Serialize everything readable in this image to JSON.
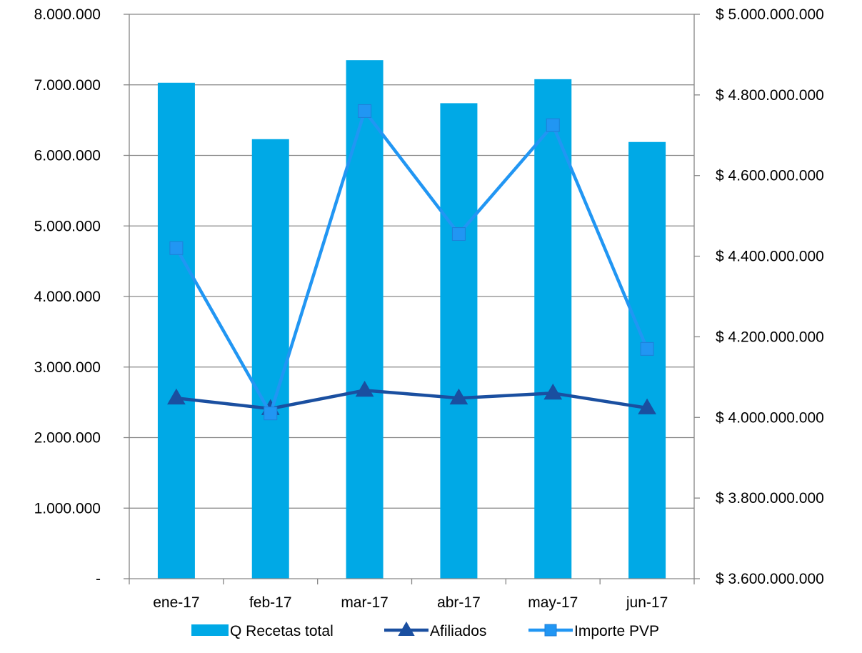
{
  "chart_data": {
    "type": "bar",
    "categories": [
      "ene-17",
      "feb-17",
      "mar-17",
      "abr-17",
      "may-17",
      "jun-17"
    ],
    "series": [
      {
        "name": "Q Recetas total",
        "type": "bar",
        "axis": "left",
        "color": "#00A9E6",
        "values": [
          7030000,
          6230000,
          7350000,
          6740000,
          7080000,
          6190000
        ]
      },
      {
        "name": "Afiliados",
        "type": "line",
        "axis": "left",
        "marker": "triangle",
        "color": "#1A4FA0",
        "values": [
          2560000,
          2410000,
          2670000,
          2560000,
          2630000,
          2420000
        ]
      },
      {
        "name": "Importe PVP",
        "type": "line",
        "axis": "right",
        "marker": "square",
        "color": "#2196F3",
        "values": [
          4420000000,
          4010000000,
          4760000000,
          4455000000,
          4725000000,
          4170000000
        ]
      }
    ],
    "y_left": {
      "ylim": [
        0,
        8000000
      ],
      "tick_labels": [
        "-",
        "1.000.000",
        "2.000.000",
        "3.000.000",
        "4.000.000",
        "5.000.000",
        "6.000.000",
        "7.000.000",
        "8.000.000"
      ]
    },
    "y_right": {
      "ylim": [
        3600000000,
        5000000000
      ],
      "tick_labels": [
        "$ 3.600.000.000",
        "$ 3.800.000.000",
        "$ 4.000.000.000",
        "$ 4.200.000.000",
        "$ 4.400.000.000",
        "$ 4.600.000.000",
        "$ 4.800.000.000",
        "$ 5.000.000.000"
      ]
    },
    "grid": true,
    "legend_position": "bottom",
    "title": "",
    "xlabel": "",
    "ylabel": ""
  }
}
